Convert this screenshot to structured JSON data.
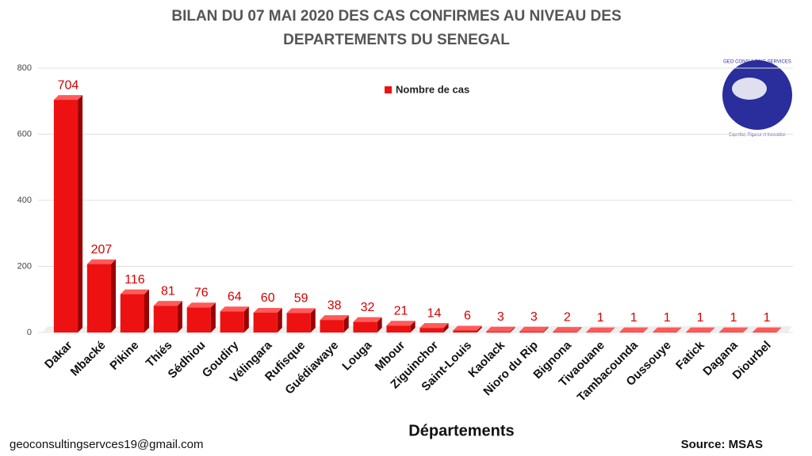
{
  "chart_data": {
    "type": "bar",
    "title": "BILAN DU 07 MAI 2020 DES CAS CONFIRMES AU NIVEAU DES DEPARTEMENTS DU SENEGAL",
    "x_label": "Départements",
    "categories": [
      "Dakar",
      "Mbacké",
      "Pikine",
      "Thiés",
      "Sédhiou",
      "Goudiry",
      "Vélingara",
      "Rufisque",
      "Guédiawaye",
      "Louga",
      "Mbour",
      "Ziguinchor",
      "Saint-Louis",
      "Kaolack",
      "Nioro du Rip",
      "Bignona",
      "Tivaouane",
      "Tambacounda",
      "Oussouye",
      "Fatick",
      "Dagana",
      "Diourbel"
    ],
    "series": [
      {
        "name": "Nombre de cas",
        "color": "#ee1111",
        "values": [
          704,
          207,
          116,
          81,
          76,
          64,
          60,
          59,
          38,
          32,
          21,
          14,
          6,
          3,
          3,
          2,
          1,
          1,
          1,
          1,
          1,
          1
        ]
      }
    ],
    "ylim": [
      0,
      800
    ],
    "yticks": [
      0,
      200,
      400,
      600,
      800
    ],
    "grid": true,
    "legend": "top",
    "footer_left": "geoconsultingservces19@gmail.com",
    "footer_right": "Source: MSAS",
    "logo_name": "GEO CONSULTING SERVICES",
    "logo_motto": "Expertise, Rigueur et Innovation"
  }
}
